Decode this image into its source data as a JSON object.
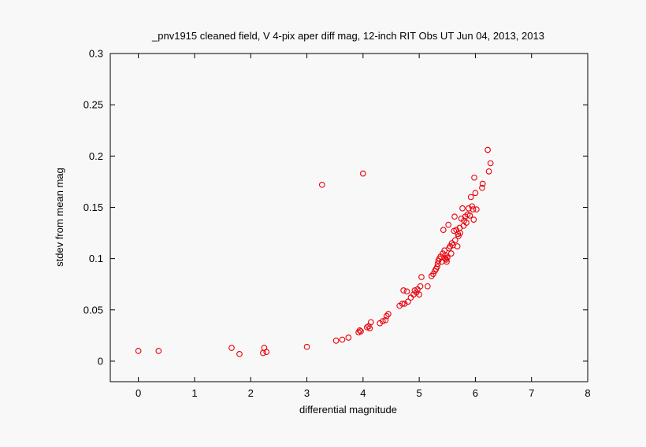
{
  "chart_data": {
    "type": "scatter",
    "title": "_pnv1915 cleaned field, V 4-pix aper diff mag,  12-inch RIT Obs UT Jun 04, 2013, 2013",
    "xlabel": "differential magnitude",
    "ylabel": "stdev from mean mag",
    "xlim": [
      -0.5,
      8
    ],
    "ylim": [
      -0.02,
      0.3
    ],
    "xticks": [
      0,
      1,
      2,
      3,
      4,
      5,
      6,
      7,
      8
    ],
    "yticks": [
      0,
      0.05,
      0.1,
      0.15,
      0.2,
      0.25,
      0.3
    ],
    "xtick_labels": [
      "0",
      "1",
      "2",
      "3",
      "4",
      "5",
      "6",
      "7",
      "8"
    ],
    "ytick_labels": [
      "0",
      "0.05",
      "0.1",
      "0.15",
      "0.2",
      "0.25",
      "0.3"
    ],
    "grid": true,
    "marker_color": "#e8000b",
    "series": [
      {
        "points": [
          [
            0.0,
            0.01
          ],
          [
            0.36,
            0.01
          ],
          [
            1.66,
            0.013
          ],
          [
            1.8,
            0.007
          ],
          [
            2.22,
            0.008
          ],
          [
            2.24,
            0.013
          ],
          [
            2.28,
            0.009
          ],
          [
            3.0,
            0.014
          ],
          [
            3.27,
            0.172
          ],
          [
            3.52,
            0.02
          ],
          [
            3.63,
            0.021
          ],
          [
            3.74,
            0.023
          ],
          [
            3.92,
            0.028
          ],
          [
            3.94,
            0.03
          ],
          [
            3.96,
            0.029
          ],
          [
            4.0,
            0.183
          ],
          [
            4.07,
            0.033
          ],
          [
            4.1,
            0.034
          ],
          [
            4.12,
            0.032
          ],
          [
            4.14,
            0.038
          ],
          [
            4.3,
            0.037
          ],
          [
            4.35,
            0.039
          ],
          [
            4.4,
            0.04
          ],
          [
            4.42,
            0.044
          ],
          [
            4.45,
            0.046
          ],
          [
            4.65,
            0.054
          ],
          [
            4.7,
            0.056
          ],
          [
            4.72,
            0.069
          ],
          [
            4.74,
            0.056
          ],
          [
            4.78,
            0.068
          ],
          [
            4.8,
            0.058
          ],
          [
            4.85,
            0.062
          ],
          [
            4.9,
            0.065
          ],
          [
            4.92,
            0.069
          ],
          [
            4.95,
            0.067
          ],
          [
            4.97,
            0.07
          ],
          [
            5.0,
            0.065
          ],
          [
            5.02,
            0.073
          ],
          [
            5.04,
            0.082
          ],
          [
            5.15,
            0.073
          ],
          [
            5.22,
            0.083
          ],
          [
            5.25,
            0.085
          ],
          [
            5.28,
            0.088
          ],
          [
            5.3,
            0.09
          ],
          [
            5.32,
            0.092
          ],
          [
            5.33,
            0.095
          ],
          [
            5.34,
            0.098
          ],
          [
            5.36,
            0.1
          ],
          [
            5.38,
            0.102
          ],
          [
            5.4,
            0.097
          ],
          [
            5.42,
            0.105
          ],
          [
            5.43,
            0.128
          ],
          [
            5.45,
            0.108
          ],
          [
            5.46,
            0.1
          ],
          [
            5.47,
            0.103
          ],
          [
            5.48,
            0.099
          ],
          [
            5.49,
            0.097
          ],
          [
            5.5,
            0.101
          ],
          [
            5.52,
            0.133
          ],
          [
            5.53,
            0.11
          ],
          [
            5.55,
            0.112
          ],
          [
            5.57,
            0.105
          ],
          [
            5.58,
            0.115
          ],
          [
            5.6,
            0.113
          ],
          [
            5.62,
            0.127
          ],
          [
            5.63,
            0.141
          ],
          [
            5.64,
            0.118
          ],
          [
            5.66,
            0.128
          ],
          [
            5.68,
            0.112
          ],
          [
            5.69,
            0.124
          ],
          [
            5.7,
            0.122
          ],
          [
            5.72,
            0.13
          ],
          [
            5.73,
            0.125
          ],
          [
            5.75,
            0.139
          ],
          [
            5.77,
            0.149
          ],
          [
            5.79,
            0.132
          ],
          [
            5.8,
            0.137
          ],
          [
            5.82,
            0.141
          ],
          [
            5.84,
            0.135
          ],
          [
            5.86,
            0.143
          ],
          [
            5.88,
            0.149
          ],
          [
            5.9,
            0.142
          ],
          [
            5.92,
            0.16
          ],
          [
            5.94,
            0.151
          ],
          [
            5.96,
            0.148
          ],
          [
            5.97,
            0.138
          ],
          [
            5.98,
            0.179
          ],
          [
            6.0,
            0.164
          ],
          [
            6.02,
            0.148
          ],
          [
            6.12,
            0.169
          ],
          [
            6.13,
            0.173
          ],
          [
            6.22,
            0.206
          ],
          [
            6.24,
            0.185
          ],
          [
            6.27,
            0.193
          ]
        ]
      }
    ]
  }
}
